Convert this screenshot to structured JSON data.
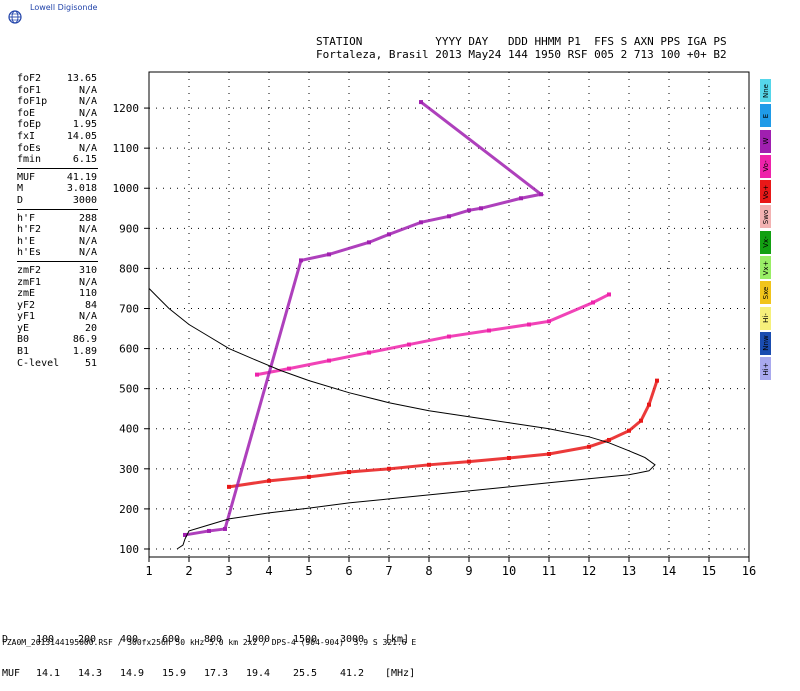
{
  "brand": {
    "name": "Lowell Digisonde"
  },
  "header": {
    "line1": "STATION           YYYY DAY   DDD HHMM P1  FFS S AXN PPS IGA PS",
    "line2": "Fortaleza, Brasil 2013 May24 144 1950 RSF 005 2 713 100 +0+ B2"
  },
  "params": {
    "group1": [
      {
        "k": "foF2",
        "v": "13.65"
      },
      {
        "k": "foF1",
        "v": "N/A"
      },
      {
        "k": "foF1p",
        "v": "N/A"
      },
      {
        "k": "foE",
        "v": "N/A"
      },
      {
        "k": "foEp",
        "v": "1.95"
      },
      {
        "k": "fxI",
        "v": "14.05"
      },
      {
        "k": "foEs",
        "v": "N/A"
      },
      {
        "k": "fmin",
        "v": "6.15"
      }
    ],
    "group2": [
      {
        "k": "MUF",
        "v": "41.19"
      },
      {
        "k": "M",
        "v": "3.018"
      },
      {
        "k": "D",
        "v": "3000"
      }
    ],
    "group3": [
      {
        "k": "h'F",
        "v": "288"
      },
      {
        "k": "h'F2",
        "v": "N/A"
      },
      {
        "k": "h'E",
        "v": "N/A"
      },
      {
        "k": "h'Es",
        "v": "N/A"
      }
    ],
    "group4": [
      {
        "k": "zmF2",
        "v": "310"
      },
      {
        "k": "zmF1",
        "v": "N/A"
      },
      {
        "k": "zmE",
        "v": "110"
      },
      {
        "k": "yF2",
        "v": "84"
      },
      {
        "k": "yF1",
        "v": "N/A"
      },
      {
        "k": "yE",
        "v": "20"
      },
      {
        "k": "B0",
        "v": "86.9"
      },
      {
        "k": "B1",
        "v": "1.89"
      },
      {
        "k": "C-level",
        "v": "51"
      }
    ]
  },
  "legend": [
    {
      "label": "Nne",
      "color": "#55d6ea"
    },
    {
      "label": "E",
      "color": "#1f9be8"
    },
    {
      "label": "W",
      "color": "#a01fb0"
    },
    {
      "label": "Vo-",
      "color": "#ee22aa"
    },
    {
      "label": "Vo+",
      "color": "#e81818"
    },
    {
      "label": "Swo",
      "color": "#f3b2b2"
    },
    {
      "label": "Vx-",
      "color": "#12a012"
    },
    {
      "label": "Vx+",
      "color": "#99ee66"
    },
    {
      "label": "Sxe",
      "color": "#f1c41b"
    },
    {
      "label": "Hi-",
      "color": "#f6f07b"
    },
    {
      "label": "Nnw",
      "color": "#1a4cb0"
    },
    {
      "label": "Hi+",
      "color": "#a9a9ee"
    }
  ],
  "dtable": {
    "row1": [
      "D",
      "100",
      "200",
      "400",
      "600",
      "800",
      "1000",
      "1500",
      "3000",
      "[km]"
    ],
    "row2": [
      "MUF",
      "14.1",
      "14.3",
      "14.9",
      "15.9",
      "17.3",
      "19.4",
      "25.5",
      "41.2",
      "[MHz]"
    ]
  },
  "footer": "FZA0M_2013144195000.RSF / 300fx256h 50 kHz 5.0 km 2x2 / DPS-4 (904-904)  3.9 S 321.6 E",
  "chart_data": {
    "type": "scatter",
    "x_ticks": [
      1,
      2,
      3,
      4,
      5,
      6,
      7,
      8,
      9,
      10,
      11,
      12,
      13,
      14,
      15,
      16
    ],
    "y_ticks": [
      100,
      200,
      300,
      400,
      500,
      600,
      700,
      800,
      900,
      1000,
      1100,
      1200
    ],
    "xlim": [
      1,
      16
    ],
    "ylim": [
      80,
      1290
    ],
    "grid": true,
    "series": [
      {
        "color": "#e81818",
        "points": [
          [
            3.0,
            255
          ],
          [
            4,
            270
          ],
          [
            5,
            280
          ],
          [
            6,
            292
          ],
          [
            7,
            300
          ],
          [
            8,
            310
          ],
          [
            9,
            318
          ],
          [
            10,
            327
          ],
          [
            11,
            337
          ],
          [
            12,
            355
          ],
          [
            12.5,
            372
          ],
          [
            13,
            395
          ],
          [
            13.3,
            420
          ],
          [
            13.5,
            460
          ],
          [
            13.7,
            520
          ]
        ]
      },
      {
        "color": "#ee22aa",
        "points": [
          [
            3.7,
            535
          ],
          [
            4.5,
            550
          ],
          [
            5.5,
            570
          ],
          [
            6.5,
            590
          ],
          [
            7.5,
            610
          ],
          [
            8.5,
            630
          ],
          [
            9.5,
            645
          ],
          [
            10.5,
            660
          ],
          [
            11,
            668
          ],
          [
            12.1,
            715
          ],
          [
            12.5,
            735
          ]
        ]
      },
      {
        "color": "#a01fb0",
        "points": [
          [
            1.9,
            135
          ],
          [
            2.5,
            145
          ],
          [
            2.9,
            150
          ],
          [
            4.8,
            820
          ],
          [
            5.5,
            835
          ],
          [
            6.5,
            865
          ],
          [
            7,
            885
          ],
          [
            7.8,
            915
          ],
          [
            8.5,
            930
          ],
          [
            9,
            945
          ],
          [
            9.3,
            950
          ],
          [
            10.3,
            975
          ],
          [
            10.8,
            985
          ],
          [
            7.8,
            1215
          ]
        ]
      }
    ],
    "profile": [
      [
        1,
        750
      ],
      [
        1.2,
        730
      ],
      [
        1.5,
        700
      ],
      [
        2,
        660
      ],
      [
        2.5,
        630
      ],
      [
        3,
        600
      ],
      [
        3.7,
        570
      ],
      [
        4.3,
        545
      ],
      [
        5,
        520
      ],
      [
        6,
        490
      ],
      [
        7,
        465
      ],
      [
        8,
        445
      ],
      [
        9,
        430
      ],
      [
        10,
        415
      ],
      [
        11,
        400
      ],
      [
        12,
        380
      ],
      [
        12.5,
        365
      ],
      [
        13,
        345
      ],
      [
        13.4,
        328
      ],
      [
        13.65,
        310
      ],
      [
        13.5,
        295
      ],
      [
        13,
        285
      ],
      [
        12,
        275
      ],
      [
        11,
        265
      ],
      [
        10,
        255
      ],
      [
        9,
        245
      ],
      [
        8,
        235
      ],
      [
        7,
        225
      ],
      [
        6,
        215
      ],
      [
        5,
        202
      ],
      [
        4,
        190
      ],
      [
        3,
        175
      ],
      [
        2.5,
        160
      ],
      [
        2.0,
        145
      ],
      [
        1.9,
        125
      ],
      [
        1.85,
        110
      ],
      [
        1.7,
        100
      ]
    ]
  }
}
